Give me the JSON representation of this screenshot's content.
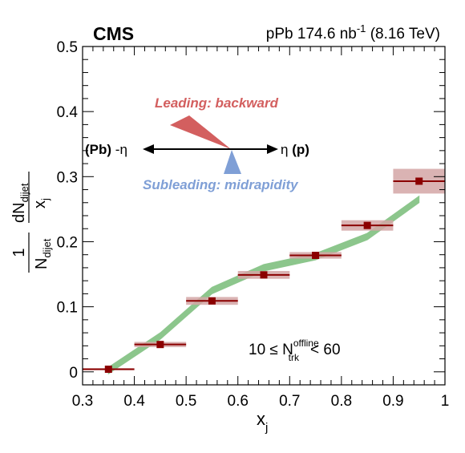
{
  "chart_data": {
    "type": "scatter",
    "experiment": "CMS",
    "dataset": {
      "system": "pPb",
      "luminosity": "174.6 nb",
      "luminosity_unit_exponent": "-1",
      "energy": "(8.16 TeV)"
    },
    "xlabel": {
      "base": "x",
      "sub": "j"
    },
    "ylabel": {
      "numerator_one": "1",
      "denominator_base": "N",
      "denominator_sub": "dijet",
      "frac_num_base": "dN",
      "frac_num_sub": "dijet",
      "frac_den_base": "x",
      "frac_den_sub": "j"
    },
    "xlim": [
      0.3,
      1.0
    ],
    "ylim": [
      -0.02,
      0.5
    ],
    "x_ticks": [
      0.3,
      0.4,
      0.5,
      0.6,
      0.7,
      0.8,
      0.9,
      1.0
    ],
    "x_tick_labels": [
      "0.3",
      "0.4",
      "0.5",
      "0.6",
      "0.7",
      "0.8",
      "0.9",
      "1"
    ],
    "y_ticks": [
      0,
      0.1,
      0.2,
      0.3,
      0.4,
      0.5
    ],
    "y_tick_labels": [
      "0",
      "0.1",
      "0.2",
      "0.3",
      "0.4",
      "0.5"
    ],
    "series": [
      {
        "marker": "square",
        "color": "#8b0000",
        "sys_color": "#d4a6a6",
        "x": [
          0.35,
          0.45,
          0.55,
          0.65,
          0.75,
          0.85,
          0.95
        ],
        "x_half_width": 0.05,
        "y": [
          0.004,
          0.042,
          0.109,
          0.149,
          0.179,
          0.225,
          0.293
        ],
        "sys_err": [
          0.0015,
          0.004,
          0.006,
          0.006,
          0.005,
          0.008,
          0.019
        ]
      }
    ],
    "band": {
      "color": "#8cc68c",
      "x": [
        0.35,
        0.45,
        0.55,
        0.65,
        0.75,
        0.85,
        0.95
      ],
      "y": [
        0.002,
        0.055,
        0.125,
        0.16,
        0.177,
        0.208,
        0.265
      ],
      "half_width": 0.005
    },
    "annotations": {
      "leading": "Leading: backward",
      "subleading": "Subleading: midrapidity",
      "left_label_bold": "(Pb)",
      "left_label_eta": "-η",
      "right_label_eta": "η",
      "right_label_bold": "(p)",
      "selection_prefix": "10 ≤ N",
      "selection_sup": "offline",
      "selection_sub": "trk",
      "selection_suffix": "< 60"
    },
    "colors": {
      "leading": "#d35f5f",
      "subleading": "#7f9fd6"
    },
    "grid": false
  }
}
